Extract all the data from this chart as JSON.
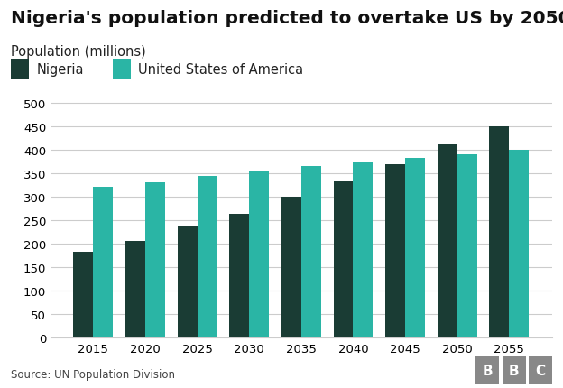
{
  "title": "Nigeria's population predicted to overtake US by 2050",
  "ylabel": "Population (millions)",
  "years": [
    2015,
    2020,
    2025,
    2030,
    2035,
    2040,
    2045,
    2050,
    2055
  ],
  "nigeria": [
    182,
    206,
    236,
    264,
    300,
    333,
    370,
    412,
    450
  ],
  "usa": [
    322,
    331,
    344,
    356,
    366,
    375,
    383,
    391,
    400
  ],
  "nigeria_color": "#1a3c34",
  "usa_color": "#2ab5a5",
  "bar_width": 0.38,
  "ylim": [
    0,
    510
  ],
  "yticks": [
    0,
    50,
    100,
    150,
    200,
    250,
    300,
    350,
    400,
    450,
    500
  ],
  "legend_nigeria": "Nigeria",
  "legend_usa": "United States of America",
  "source": "Source: UN Population Division",
  "background_color": "#ffffff",
  "grid_color": "#cccccc",
  "title_fontsize": 14.5,
  "label_fontsize": 10.5,
  "tick_fontsize": 9.5,
  "legend_fontsize": 10.5,
  "bbc_color": "#888888"
}
